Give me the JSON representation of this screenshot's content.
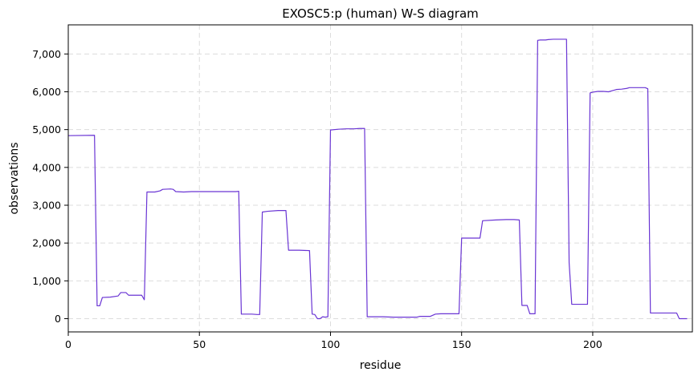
{
  "chart_data": {
    "type": "line",
    "title": "EXOSC5:p (human) W-S diagram",
    "xlabel": "residue",
    "ylabel": "observations",
    "xlim": [
      0,
      238
    ],
    "ylim": [
      -350,
      7770
    ],
    "grid": true,
    "grid_style": "dashed",
    "line_color": "#6a35d4",
    "x_ticks": [
      0,
      50,
      100,
      150,
      200
    ],
    "x_tick_labels": [
      "0",
      "50",
      "100",
      "150",
      "200"
    ],
    "y_ticks": [
      0,
      1000,
      2000,
      3000,
      4000,
      5000,
      6000,
      7000
    ],
    "y_tick_labels": [
      "0",
      "1,000",
      "2,000",
      "3,000",
      "4,000",
      "5,000",
      "6,000",
      "7,000"
    ],
    "series": [
      {
        "x": [
          0,
          10,
          11,
          12,
          13,
          16,
          19,
          20,
          22,
          23,
          25,
          28,
          29,
          30,
          33,
          35,
          36,
          39,
          40,
          41,
          44,
          47,
          49,
          52,
          56,
          60,
          64,
          65,
          66,
          70,
          72,
          73,
          74,
          76,
          80,
          82,
          83,
          84,
          88,
          92,
          93,
          94,
          95,
          96,
          97,
          98,
          99,
          100,
          103,
          106,
          109,
          111,
          113,
          114,
          120,
          124,
          126,
          130,
          132,
          133,
          134,
          137,
          138,
          140,
          142,
          146,
          149,
          150,
          154,
          157,
          158,
          163,
          167,
          170,
          172,
          173,
          175,
          176,
          178,
          179,
          180,
          182,
          183,
          185,
          190,
          191,
          192,
          194,
          198,
          199,
          200,
          202,
          204,
          206,
          207,
          209,
          211,
          213,
          214,
          216,
          220,
          221,
          222,
          223,
          227,
          228,
          230,
          232,
          233,
          234,
          236
        ],
        "y": [
          4840,
          4850,
          340,
          340,
          560,
          570,
          600,
          690,
          690,
          620,
          620,
          620,
          500,
          3350,
          3350,
          3380,
          3420,
          3430,
          3420,
          3360,
          3350,
          3360,
          3360,
          3360,
          3360,
          3360,
          3360,
          3370,
          120,
          120,
          110,
          110,
          2820,
          2840,
          2860,
          2860,
          2860,
          1810,
          1810,
          1800,
          120,
          110,
          0,
          0,
          50,
          40,
          50,
          4990,
          5010,
          5020,
          5020,
          5030,
          5030,
          50,
          50,
          40,
          40,
          40,
          40,
          40,
          60,
          60,
          60,
          120,
          130,
          130,
          130,
          2130,
          2130,
          2130,
          2590,
          2610,
          2620,
          2620,
          2610,
          350,
          350,
          130,
          130,
          7360,
          7370,
          7370,
          7380,
          7390,
          7390,
          1480,
          380,
          380,
          380,
          5970,
          5990,
          6010,
          6010,
          6000,
          6020,
          6060,
          6070,
          6090,
          6110,
          6110,
          6110,
          6080,
          150,
          150,
          150,
          150,
          150,
          150,
          0,
          0,
          0
        ]
      }
    ]
  }
}
